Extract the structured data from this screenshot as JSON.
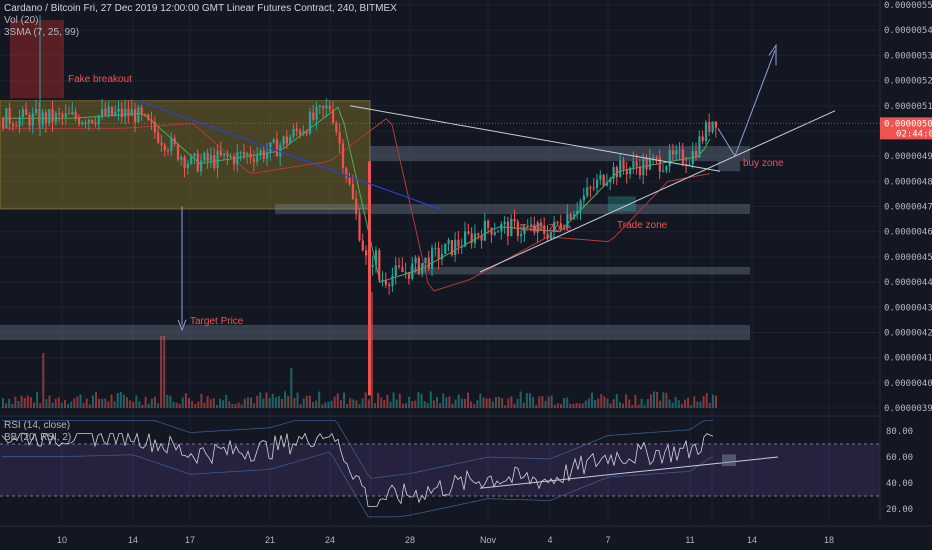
{
  "header": {
    "title": "Cardano / Bitcoin  Fri, 27 Dec 2019 12:00:00 GMT  Linear Futures Contract, 240, BITMEX",
    "vol": "Vol (20)",
    "sma": "3SMA (7, 25, 99)",
    "rsi": "RSI (14, close)",
    "bb": "BB (20, RSI, 2)"
  },
  "colors": {
    "background": "#131722",
    "up": "#26a69a",
    "down": "#ef5350",
    "annotation": "#f05350",
    "zone": "#7b8a9c",
    "range_box": "#8c7a2a",
    "trend_white": "#c9cdd6",
    "trend_blue": "#2a3fd6",
    "sma_green": "#4caf50",
    "sma_red": "#b23a3a",
    "rsi_line": "#7e57c2",
    "price_tag": "#ef5350"
  },
  "chart_data": [
    {
      "type": "candlestick",
      "title": "Cardano / Bitcoin",
      "xlabel": "",
      "ylabel": "",
      "ylim": [
        3.9e-06,
        5.5e-06
      ],
      "x_ticks": [
        "10",
        "14",
        "17",
        "21",
        "24",
        "28",
        "Nov",
        "4",
        "7",
        "11",
        "14",
        "18"
      ],
      "y_ticks": [
        "0.00000550",
        "0.00000540",
        "0.00000530",
        "0.00000520",
        "0.00000510",
        "0.00000500",
        "0.00000490",
        "0.00000480",
        "0.00000470",
        "0.00000460",
        "0.00000450",
        "0.00000440",
        "0.00000430",
        "0.00000420",
        "0.00000410",
        "0.00000400",
        "0.00000390"
      ],
      "last_price": "0.00000503",
      "countdown": "02:44:06",
      "series_close": [
        {
          "x": "10",
          "y": 5.05e-06
        },
        {
          "x": "14",
          "y": 5.07e-06
        },
        {
          "x": "17",
          "y": 4.87e-06
        },
        {
          "x": "21",
          "y": 4.92e-06
        },
        {
          "x": "24",
          "y": 5.1e-06
        },
        {
          "x": "26",
          "y": 4.4e-06
        },
        {
          "x": "28",
          "y": 4.45e-06
        },
        {
          "x": "Nov",
          "y": 4.62e-06
        },
        {
          "x": "4",
          "y": 4.6e-06
        },
        {
          "x": "7",
          "y": 4.84e-06
        },
        {
          "x": "11",
          "y": 4.9e-06
        },
        {
          "x": "12",
          "y": 5.05e-06
        }
      ],
      "annotations": [
        {
          "text": "Fake breakout"
        },
        {
          "text": "Target Price"
        },
        {
          "text": "Trade Zone"
        },
        {
          "text": "Trade zone"
        },
        {
          "text": "buy zone"
        }
      ]
    },
    {
      "type": "line",
      "title": "RSI (14, close)",
      "ylim": [
        10,
        90
      ],
      "y_ticks": [
        "80.00",
        "60.00",
        "40.00",
        "20.00"
      ],
      "bands": [
        70,
        30
      ]
    }
  ]
}
